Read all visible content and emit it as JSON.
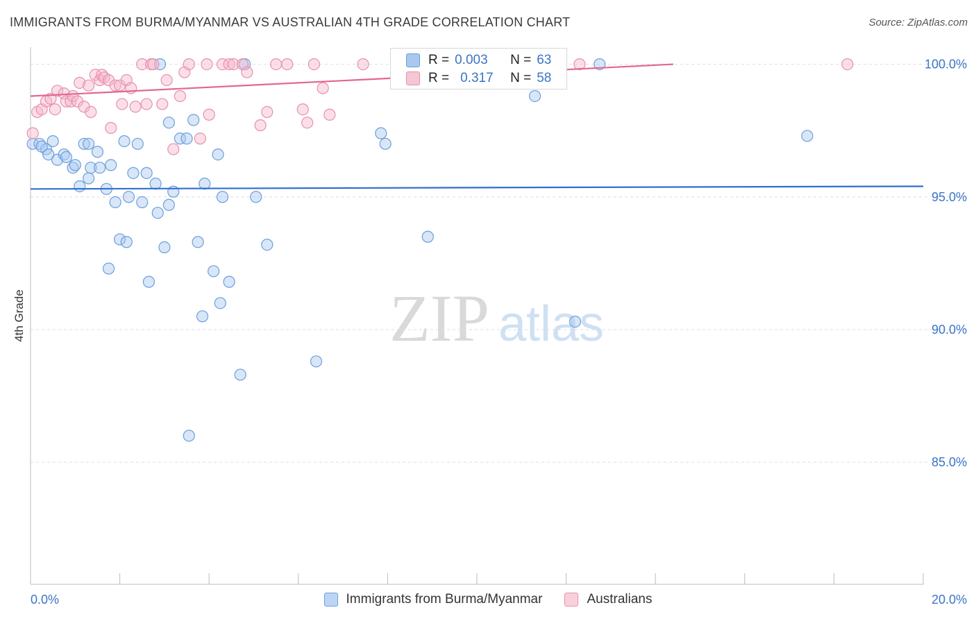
{
  "title": "IMMIGRANTS FROM BURMA/MYANMAR VS AUSTRALIAN 4TH GRADE CORRELATION CHART",
  "source": "Source: ZipAtlas.com",
  "watermark": {
    "zip": "ZIP",
    "atlas": "atlas"
  },
  "colors": {
    "blue_fill": "#a8c8f0",
    "blue_stroke": "#6a9fdc",
    "blue_line": "#2f6fcc",
    "pink_fill": "#f5b8cb",
    "pink_stroke": "#e98fab",
    "pink_line": "#e4668f",
    "tick_label": "#3a74c8",
    "grid": "#dddddd"
  },
  "legend": {
    "r_label": "R =",
    "n_label": "N =",
    "rows": [
      {
        "series": "Immigrants from Burma/Myanmar",
        "r": "0.003",
        "n": "63"
      },
      {
        "series": "Australians",
        "r": "0.317",
        "n": "58"
      }
    ]
  },
  "chart_data": {
    "type": "scatter",
    "title": "IMMIGRANTS FROM BURMA/MYANMAR VS AUSTRALIAN 4TH GRADE CORRELATION CHART",
    "xlabel": "",
    "ylabel": "4th Grade",
    "xlim": [
      0,
      20
    ],
    "ylim": [
      80.4,
      100.8
    ],
    "x_tick_labels": [
      {
        "value": 0,
        "label": "0.0%"
      },
      {
        "value": 20,
        "label": "20.0%"
      }
    ],
    "y_tick_labels": [
      {
        "value": 100,
        "label": "100.0%"
      },
      {
        "value": 95,
        "label": "95.0%"
      },
      {
        "value": 90,
        "label": "90.0%"
      },
      {
        "value": 85,
        "label": "85.0%"
      }
    ],
    "y_gridlines": [
      100,
      95,
      90,
      85
    ],
    "grid": true,
    "legend_position": "top-center",
    "series": [
      {
        "name": "Immigrants from Burma/Myanmar",
        "color": "blue",
        "trend": {
          "x": [
            0,
            20
          ],
          "y": [
            95.3,
            95.4
          ]
        },
        "points": [
          [
            0.05,
            97.0
          ],
          [
            0.2,
            97.0
          ],
          [
            0.35,
            96.8
          ],
          [
            0.5,
            97.1
          ],
          [
            0.4,
            96.6
          ],
          [
            0.6,
            96.4
          ],
          [
            0.75,
            96.6
          ],
          [
            0.8,
            96.5
          ],
          [
            0.95,
            96.1
          ],
          [
            1.0,
            96.2
          ],
          [
            1.1,
            95.4
          ],
          [
            1.2,
            97.0
          ],
          [
            1.3,
            97.0
          ],
          [
            1.3,
            95.7
          ],
          [
            1.35,
            96.1
          ],
          [
            1.5,
            96.7
          ],
          [
            1.55,
            96.1
          ],
          [
            1.7,
            95.3
          ],
          [
            1.8,
            96.2
          ],
          [
            1.9,
            94.8
          ],
          [
            1.75,
            92.3
          ],
          [
            2.0,
            93.4
          ],
          [
            2.1,
            97.1
          ],
          [
            2.15,
            93.3
          ],
          [
            2.2,
            95.0
          ],
          [
            2.3,
            95.9
          ],
          [
            2.4,
            97.0
          ],
          [
            2.5,
            94.8
          ],
          [
            2.6,
            95.9
          ],
          [
            2.65,
            91.8
          ],
          [
            2.8,
            95.5
          ],
          [
            2.85,
            94.4
          ],
          [
            2.9,
            100.0
          ],
          [
            3.0,
            93.1
          ],
          [
            3.1,
            94.7
          ],
          [
            3.1,
            97.8
          ],
          [
            3.2,
            95.2
          ],
          [
            3.35,
            97.2
          ],
          [
            3.5,
            97.2
          ],
          [
            3.55,
            86.0
          ],
          [
            3.65,
            97.9
          ],
          [
            3.75,
            93.3
          ],
          [
            3.85,
            90.5
          ],
          [
            3.9,
            95.5
          ],
          [
            4.1,
            92.2
          ],
          [
            4.2,
            96.6
          ],
          [
            4.25,
            91.0
          ],
          [
            4.3,
            95.0
          ],
          [
            4.45,
            91.8
          ],
          [
            4.7,
            88.3
          ],
          [
            4.8,
            100.0
          ],
          [
            5.05,
            95.0
          ],
          [
            5.3,
            93.2
          ],
          [
            6.4,
            88.8
          ],
          [
            7.85,
            97.4
          ],
          [
            7.95,
            97.0
          ],
          [
            8.9,
            93.5
          ],
          [
            9.9,
            100.0
          ],
          [
            11.3,
            98.8
          ],
          [
            12.2,
            90.3
          ],
          [
            12.75,
            100.0
          ],
          [
            17.4,
            97.3
          ],
          [
            0.25,
            96.9
          ]
        ]
      },
      {
        "name": "Australians",
        "color": "pink",
        "trend": {
          "x": [
            0,
            14.4
          ],
          "y": [
            98.8,
            100.0
          ]
        },
        "points": [
          [
            0.05,
            97.4
          ],
          [
            0.15,
            98.2
          ],
          [
            0.25,
            98.3
          ],
          [
            0.35,
            98.6
          ],
          [
            0.45,
            98.7
          ],
          [
            0.55,
            98.3
          ],
          [
            0.6,
            99.0
          ],
          [
            0.75,
            98.9
          ],
          [
            0.8,
            98.6
          ],
          [
            0.9,
            98.6
          ],
          [
            0.95,
            98.8
          ],
          [
            1.05,
            98.6
          ],
          [
            1.1,
            99.3
          ],
          [
            1.2,
            98.4
          ],
          [
            1.3,
            99.2
          ],
          [
            1.35,
            98.2
          ],
          [
            1.45,
            99.6
          ],
          [
            1.55,
            99.4
          ],
          [
            1.6,
            99.6
          ],
          [
            1.65,
            99.5
          ],
          [
            1.75,
            99.4
          ],
          [
            1.8,
            97.6
          ],
          [
            1.9,
            99.2
          ],
          [
            2.0,
            99.2
          ],
          [
            2.05,
            98.5
          ],
          [
            2.15,
            99.4
          ],
          [
            2.25,
            99.1
          ],
          [
            2.35,
            98.4
          ],
          [
            2.5,
            100.0
          ],
          [
            2.6,
            98.5
          ],
          [
            2.7,
            100.0
          ],
          [
            2.75,
            100.0
          ],
          [
            2.95,
            98.5
          ],
          [
            3.05,
            99.4
          ],
          [
            3.2,
            96.8
          ],
          [
            3.35,
            98.8
          ],
          [
            3.45,
            99.7
          ],
          [
            3.55,
            100.0
          ],
          [
            3.8,
            97.2
          ],
          [
            3.95,
            100.0
          ],
          [
            4.0,
            98.1
          ],
          [
            4.3,
            100.0
          ],
          [
            4.45,
            100.0
          ],
          [
            4.55,
            100.0
          ],
          [
            4.75,
            100.0
          ],
          [
            4.85,
            99.7
          ],
          [
            5.15,
            97.7
          ],
          [
            5.3,
            98.2
          ],
          [
            5.5,
            100.0
          ],
          [
            5.75,
            100.0
          ],
          [
            6.1,
            98.3
          ],
          [
            6.2,
            97.8
          ],
          [
            6.35,
            100.0
          ],
          [
            6.55,
            99.1
          ],
          [
            6.7,
            98.1
          ],
          [
            7.45,
            100.0
          ],
          [
            12.3,
            100.0
          ],
          [
            18.3,
            100.0
          ]
        ]
      }
    ]
  },
  "bottom_legend": [
    "Immigrants from Burma/Myanmar",
    "Australians"
  ]
}
